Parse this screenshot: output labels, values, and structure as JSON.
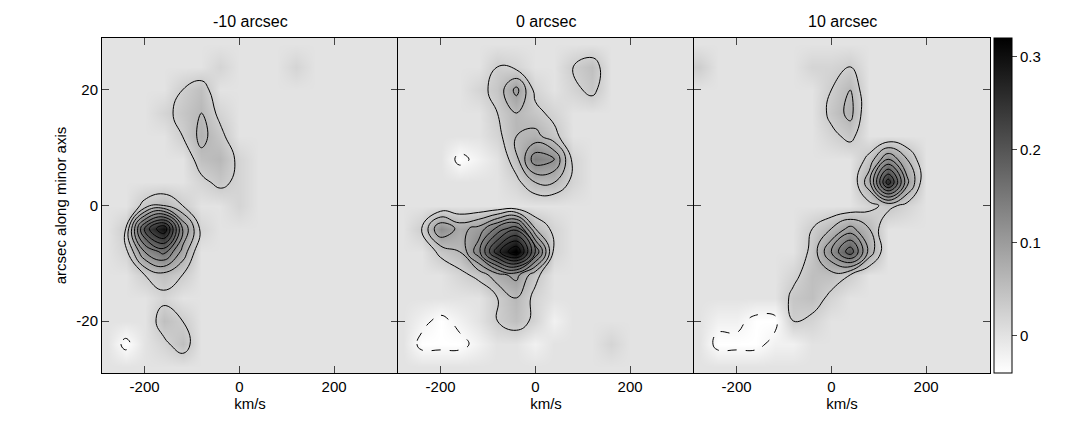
{
  "chart_data": {
    "type": "heatmap",
    "color": "gray",
    "xlabel": "km/s",
    "ylabel": "arcsec along minor axis",
    "xlim": [
      -290,
      335
    ],
    "xticks": [
      -200,
      0,
      200
    ],
    "ylim": [
      -29,
      29
    ],
    "yticks": [
      -20,
      0,
      20
    ],
    "colorbar_range": [
      -0.04,
      0.32
    ],
    "colorbar_ticks": [
      0,
      0.1,
      0.2,
      0.3
    ],
    "contour_levels": [
      0.03,
      0.06,
      0.09,
      0.12,
      0.15,
      0.18,
      0.21,
      0.24,
      0.27,
      0.3,
      0.33
    ],
    "negative_contour_levels": [
      -0.03
    ],
    "x": [
      -280,
      -240,
      -200,
      -160,
      -120,
      -80,
      -40,
      0,
      40,
      80,
      120,
      160,
      200,
      240,
      280,
      320
    ],
    "y": [
      -28,
      -24,
      -20,
      -16,
      -12,
      -8,
      -4,
      0,
      4,
      8,
      12,
      16,
      20,
      24,
      28
    ],
    "panels": [
      {
        "title": "-10 arcsec",
        "z": [
          [
            0,
            0,
            0,
            0,
            0,
            0,
            0,
            0,
            0,
            0,
            0,
            0,
            0,
            0,
            0,
            0
          ],
          [
            0,
            -0.04,
            0,
            0.02,
            0.05,
            0,
            0,
            0,
            0,
            0,
            0,
            0,
            0,
            0,
            0,
            0
          ],
          [
            0,
            0,
            0,
            0.05,
            0.03,
            0,
            0,
            0,
            0,
            0,
            0,
            0,
            0,
            0,
            0,
            0
          ],
          [
            0,
            0,
            0,
            0.02,
            0,
            0,
            0,
            0,
            0,
            0,
            0,
            0,
            0,
            0,
            0,
            0
          ],
          [
            0,
            0,
            0.03,
            0.05,
            0.03,
            0,
            0,
            0,
            0,
            0,
            0,
            0,
            0,
            0,
            0,
            0
          ],
          [
            0,
            0.02,
            0.12,
            0.16,
            0.08,
            0,
            0,
            0,
            0,
            0,
            0,
            0,
            0,
            0,
            0,
            0
          ],
          [
            0,
            0.03,
            0.22,
            0.3,
            0.12,
            0.02,
            0,
            0,
            0,
            0,
            0,
            0,
            0,
            0,
            0,
            0
          ],
          [
            0,
            0,
            0.04,
            0.06,
            0.03,
            0,
            0,
            0.02,
            0,
            0,
            0,
            0,
            0,
            0,
            0,
            0
          ],
          [
            0,
            0,
            0,
            0,
            0,
            0.02,
            0.04,
            0.02,
            0,
            0,
            0,
            0,
            0,
            0,
            0,
            0
          ],
          [
            0,
            0,
            0,
            0,
            0,
            0.05,
            0.06,
            0.02,
            0,
            0,
            0,
            0,
            0,
            0,
            0,
            0
          ],
          [
            0,
            0,
            0,
            0,
            0.03,
            0.07,
            0.04,
            0,
            0,
            0,
            0,
            0,
            0,
            0,
            0,
            0
          ],
          [
            0,
            0,
            0,
            0.02,
            0.04,
            0.06,
            0.02,
            0,
            0,
            0,
            0,
            0,
            0,
            0,
            0,
            0
          ],
          [
            0,
            0,
            0,
            0,
            0.03,
            0.05,
            0,
            0,
            0,
            0,
            0,
            0,
            0,
            0,
            0,
            0
          ],
          [
            0,
            0,
            0,
            0,
            0,
            0,
            0.02,
            0,
            0,
            0,
            0.02,
            0,
            0,
            0,
            0,
            0
          ],
          [
            0,
            0,
            0,
            0,
            0,
            0,
            0,
            0,
            0,
            0,
            0,
            0,
            0,
            0,
            0,
            0
          ]
        ]
      },
      {
        "title": "0 arcsec",
        "z": [
          [
            0,
            0,
            0,
            0,
            0,
            0,
            0,
            0,
            0,
            0,
            0,
            0,
            0,
            0,
            0,
            0
          ],
          [
            0,
            -0.04,
            -0.04,
            -0.04,
            -0.02,
            0,
            0,
            -0.02,
            0,
            0,
            0,
            0.02,
            0,
            0,
            0,
            0
          ],
          [
            0,
            -0.02,
            -0.04,
            -0.02,
            0,
            0.03,
            0.05,
            0.02,
            -0.02,
            0,
            0,
            0,
            0,
            0,
            0,
            0
          ],
          [
            0,
            0,
            0,
            0,
            0,
            0.03,
            0.06,
            0.02,
            0,
            0,
            0,
            0,
            0,
            0,
            0,
            0
          ],
          [
            0,
            0,
            0,
            0.02,
            0.04,
            0.08,
            0.1,
            0.04,
            0,
            0,
            0,
            0,
            0,
            0,
            0,
            0
          ],
          [
            0,
            0,
            0.04,
            0.06,
            0.14,
            0.26,
            0.33,
            0.18,
            0.02,
            0,
            0,
            0,
            0,
            0,
            0,
            0
          ],
          [
            0,
            0.03,
            0.12,
            0.08,
            0.1,
            0.16,
            0.2,
            0.06,
            0.02,
            0,
            0,
            0,
            0,
            0,
            0,
            0
          ],
          [
            0,
            0,
            0,
            0,
            0,
            0,
            0,
            0,
            0,
            0,
            0,
            0,
            0,
            0,
            0,
            0
          ],
          [
            0,
            0,
            0,
            0,
            0,
            0,
            0.02,
            0.06,
            0.06,
            0.02,
            0,
            0,
            0,
            0,
            0,
            0
          ],
          [
            0,
            0,
            0,
            -0.04,
            -0.02,
            0,
            0.05,
            0.14,
            0.12,
            0.02,
            0,
            0,
            0,
            0,
            0,
            0
          ],
          [
            0,
            0,
            0,
            0,
            0,
            0.02,
            0.06,
            0.07,
            0.04,
            0,
            0,
            0,
            0,
            0,
            0,
            0
          ],
          [
            0,
            0,
            0,
            0,
            0,
            0.03,
            0.06,
            0.04,
            0.02,
            0,
            0,
            0,
            0,
            0,
            0,
            0
          ],
          [
            0,
            0,
            0,
            0,
            0.02,
            0.04,
            0.1,
            0.02,
            0,
            0.02,
            0.04,
            0,
            0,
            0,
            0,
            0
          ],
          [
            0,
            0,
            0,
            0,
            0,
            0.03,
            0.02,
            0,
            0,
            0.03,
            0.05,
            0,
            0,
            0,
            0,
            0
          ],
          [
            0,
            0,
            0,
            0,
            0,
            0,
            0,
            0,
            0,
            0,
            0,
            0,
            0,
            0,
            0,
            0
          ]
        ]
      },
      {
        "title": "10 arcsec",
        "z": [
          [
            0,
            0,
            0,
            0,
            0,
            0,
            0,
            0,
            0,
            0,
            0,
            0,
            0,
            0,
            0,
            0
          ],
          [
            0,
            -0.04,
            -0.04,
            -0.04,
            -0.02,
            -0.02,
            0,
            0,
            0,
            0,
            0,
            0,
            0,
            0,
            0,
            0
          ],
          [
            0,
            -0.02,
            -0.02,
            -0.04,
            -0.04,
            0.03,
            0.02,
            0,
            0,
            0,
            0,
            0,
            0,
            0,
            0,
            0
          ],
          [
            0,
            0,
            0,
            0,
            0,
            0.04,
            0.05,
            0.02,
            0,
            0,
            0,
            0,
            0,
            0,
            0,
            0
          ],
          [
            0,
            0,
            0,
            0,
            0,
            0.02,
            0.05,
            0.05,
            0.03,
            0,
            0,
            0,
            0,
            0,
            0,
            0
          ],
          [
            0,
            0,
            0,
            0,
            0,
            0,
            0.04,
            0.12,
            0.2,
            0.08,
            0,
            0,
            0,
            0,
            0,
            0
          ],
          [
            0,
            0,
            0,
            0,
            0,
            0,
            0.03,
            0.06,
            0.1,
            0.06,
            0,
            0,
            0,
            0,
            0,
            0
          ],
          [
            0,
            0,
            0,
            0,
            0,
            0,
            0,
            0,
            0,
            0.02,
            0.04,
            0.02,
            0,
            0,
            0,
            0
          ],
          [
            0,
            0,
            0,
            0,
            0,
            0,
            0,
            0,
            0,
            0.08,
            0.26,
            0.1,
            0,
            0,
            0,
            0
          ],
          [
            0,
            0,
            0,
            0,
            0,
            0,
            0,
            0,
            0,
            0.04,
            0.12,
            0.06,
            0,
            0,
            0,
            0
          ],
          [
            0,
            0,
            0,
            0,
            0,
            0,
            0,
            0.02,
            0.04,
            0,
            0,
            0,
            0,
            0,
            0,
            0
          ],
          [
            0,
            0,
            0,
            0,
            0,
            0,
            0,
            0.04,
            0.07,
            0,
            0,
            0,
            0,
            0,
            0,
            0
          ],
          [
            0,
            0,
            0,
            0,
            0,
            0,
            0,
            0.03,
            0.06,
            0,
            0,
            0,
            0,
            0,
            0,
            0
          ],
          [
            0.03,
            0,
            0,
            0,
            0,
            0,
            0.02,
            0.02,
            0.03,
            0,
            0,
            0,
            0,
            0,
            0,
            0
          ],
          [
            0,
            0,
            0,
            0,
            0,
            0,
            0,
            0,
            0,
            0,
            0,
            0,
            0,
            0,
            0,
            0
          ]
        ]
      }
    ]
  }
}
